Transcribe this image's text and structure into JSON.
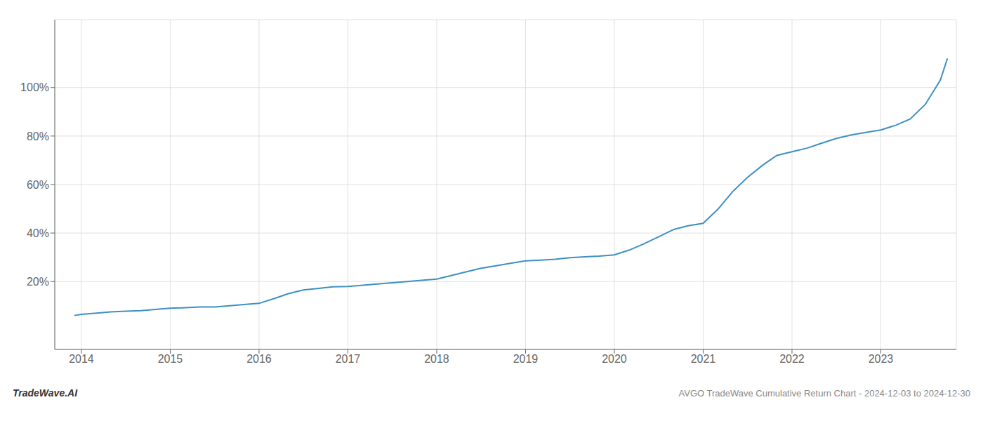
{
  "chart_data": {
    "type": "line",
    "x": [
      2013.92,
      2014.0,
      2014.17,
      2014.33,
      2014.5,
      2014.67,
      2014.83,
      2015.0,
      2015.17,
      2015.33,
      2015.5,
      2015.67,
      2015.83,
      2016.0,
      2016.17,
      2016.33,
      2016.5,
      2016.67,
      2016.83,
      2017.0,
      2017.17,
      2017.33,
      2017.5,
      2017.67,
      2017.83,
      2018.0,
      2018.17,
      2018.33,
      2018.5,
      2018.67,
      2018.83,
      2019.0,
      2019.17,
      2019.33,
      2019.5,
      2019.67,
      2019.83,
      2020.0,
      2020.17,
      2020.33,
      2020.5,
      2020.67,
      2020.83,
      2021.0,
      2021.17,
      2021.33,
      2021.5,
      2021.67,
      2021.83,
      2022.0,
      2022.17,
      2022.33,
      2022.5,
      2022.67,
      2022.83,
      2023.0,
      2023.17,
      2023.33,
      2023.5,
      2023.67,
      2023.75
    ],
    "values": [
      6.0,
      6.5,
      7.0,
      7.5,
      7.8,
      8.0,
      8.5,
      9.0,
      9.2,
      9.5,
      9.5,
      10.0,
      10.5,
      11.0,
      13.0,
      15.0,
      16.5,
      17.2,
      17.8,
      18.0,
      18.5,
      19.0,
      19.5,
      20.0,
      20.5,
      21.0,
      22.5,
      24.0,
      25.5,
      26.5,
      27.5,
      28.5,
      28.8,
      29.2,
      29.8,
      30.2,
      30.5,
      31.0,
      33.0,
      35.5,
      38.5,
      41.5,
      43.0,
      44.0,
      50.0,
      57.0,
      63.0,
      68.0,
      72.0,
      73.5,
      75.0,
      77.0,
      79.0,
      80.5,
      81.5,
      82.5,
      84.5,
      87.0,
      93.0,
      103.0,
      112.0
    ],
    "color": "#3d8fc4",
    "xlim": [
      2013.7,
      2023.85
    ],
    "ylim": [
      -8,
      128
    ],
    "xticks": [
      2014,
      2015,
      2016,
      2017,
      2018,
      2019,
      2020,
      2021,
      2022,
      2023
    ],
    "yticks": [
      {
        "value": 20,
        "label": "20%"
      },
      {
        "value": 40,
        "label": "40%"
      },
      {
        "value": 60,
        "label": "60%"
      },
      {
        "value": 80,
        "label": "80%"
      },
      {
        "value": 100,
        "label": "100%"
      }
    ],
    "grid": true,
    "annotations": [
      "TradeWave.AI",
      "AVGO TradeWave Cumulative Return Chart - 2024-12-03 to 2024-12-30"
    ]
  }
}
